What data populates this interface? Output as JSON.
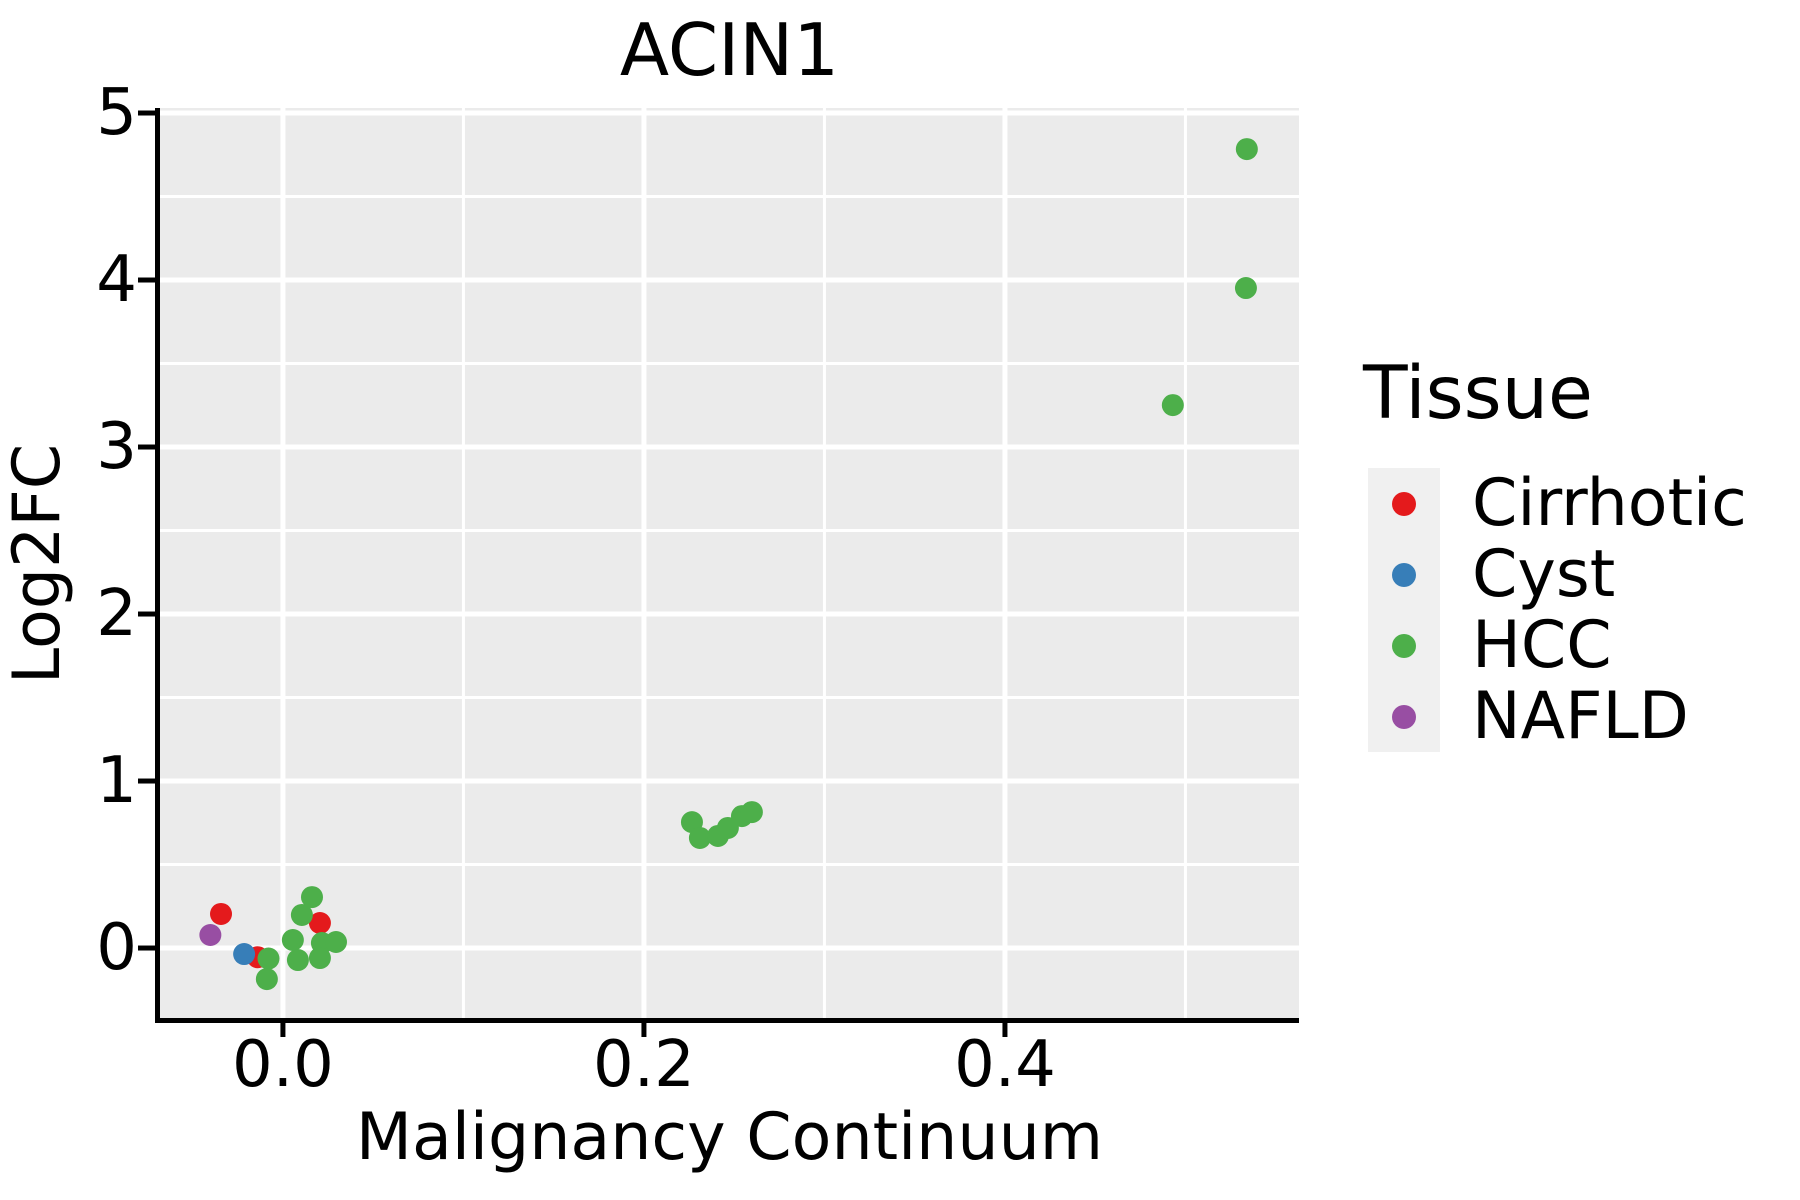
{
  "title": "ACIN1",
  "axes": {
    "x_title": "Malignancy Continuum",
    "y_title": "Log2FC",
    "x_tick_labels": [
      "0.0",
      "0.2",
      "0.4"
    ],
    "y_tick_labels": [
      "0",
      "1",
      "2",
      "3",
      "4",
      "5"
    ]
  },
  "legend": {
    "title": "Tissue",
    "items": [
      {
        "label": "Cirrhotic",
        "color": "#E41A1C"
      },
      {
        "label": "Cyst",
        "color": "#377EB8"
      },
      {
        "label": "HCC",
        "color": "#4DAF4A"
      },
      {
        "label": "NAFLD",
        "color": "#984EA3"
      }
    ]
  },
  "chart_data": {
    "type": "scatter",
    "title": "ACIN1",
    "xlabel": "Malignancy Continuum",
    "ylabel": "Log2FC",
    "xlim": [
      -0.0681,
      0.5629
    ],
    "ylim": [
      -0.419,
      5.03
    ],
    "x_ticks": [
      0.0,
      0.2,
      0.4
    ],
    "y_ticks": [
      0,
      1,
      2,
      3,
      4,
      5
    ],
    "x_minor_ticks": [
      0.1,
      0.3,
      0.5
    ],
    "y_minor_ticks": [
      0.5,
      1.5,
      2.5,
      3.5,
      4.5
    ],
    "grid": true,
    "panel_bg": "#EBEBEB",
    "grid_color": "#FFFFFF",
    "axis_color": "#000000",
    "point_radius": 11,
    "legend_position": "right",
    "series": [
      {
        "name": "Cirrhotic",
        "color": "#E41A1C",
        "points": [
          [
            -0.0343,
            0.204
          ],
          [
            -0.014,
            -0.055
          ],
          [
            0.0205,
            0.15
          ]
        ]
      },
      {
        "name": "Cyst",
        "color": "#377EB8",
        "points": [
          [
            -0.0215,
            -0.036
          ]
        ]
      },
      {
        "name": "HCC",
        "color": "#4DAF4A",
        "points": [
          [
            -0.008,
            -0.063
          ],
          [
            -0.0089,
            -0.186
          ],
          [
            0.0161,
            0.305
          ],
          [
            0.0105,
            0.198
          ],
          [
            0.0055,
            0.048
          ],
          [
            0.0216,
            0.03
          ],
          [
            0.0294,
            0.036
          ],
          [
            0.0083,
            -0.072
          ],
          [
            0.0205,
            -0.06
          ],
          [
            0.2266,
            0.754
          ],
          [
            0.231,
            0.659
          ],
          [
            0.241,
            0.671
          ],
          [
            0.2465,
            0.719
          ],
          [
            0.2543,
            0.79
          ],
          [
            0.2598,
            0.814
          ],
          [
            0.493,
            3.251
          ],
          [
            0.5335,
            3.952
          ],
          [
            0.534,
            4.784
          ]
        ]
      },
      {
        "name": "NAFLD",
        "color": "#984EA3",
        "points": [
          [
            -0.0402,
            0.078
          ]
        ]
      }
    ]
  }
}
